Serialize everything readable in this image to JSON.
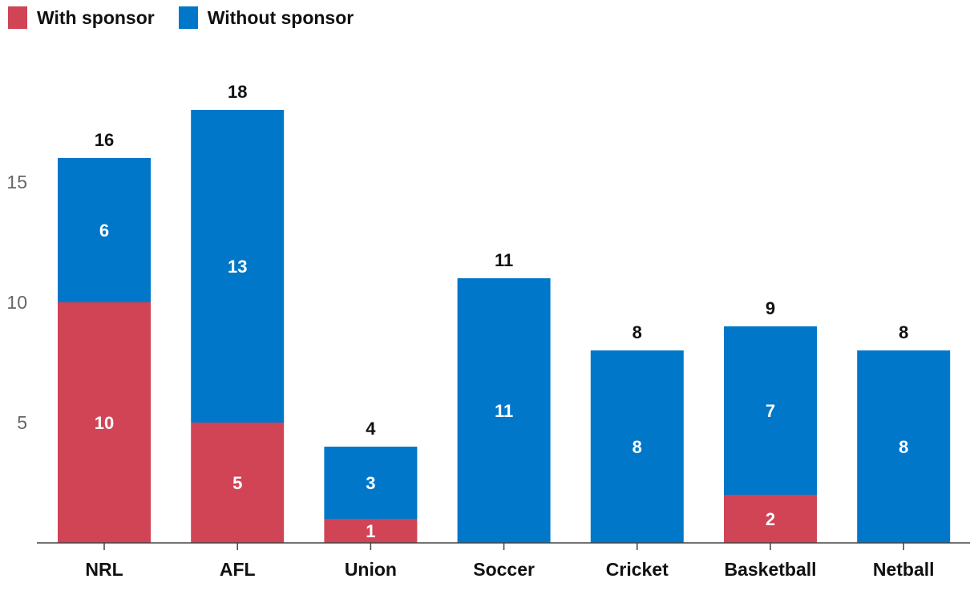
{
  "colors": {
    "with": "#d04455",
    "without": "#0077c8",
    "axis": "#444444"
  },
  "chart_data": {
    "type": "bar",
    "stacked": true,
    "categories": [
      "NRL",
      "AFL",
      "Union",
      "Soccer",
      "Cricket",
      "Basketball",
      "Netball"
    ],
    "series": [
      {
        "name": "With sponsor",
        "values": [
          10,
          5,
          1,
          0,
          0,
          2,
          0
        ]
      },
      {
        "name": "Without sponsor",
        "values": [
          6,
          13,
          3,
          11,
          8,
          7,
          8
        ]
      }
    ],
    "totals": [
      16,
      18,
      4,
      11,
      8,
      9,
      8
    ],
    "yticks": [
      5,
      10,
      15
    ],
    "ylim": [
      0,
      18
    ],
    "grid": false,
    "legend": "top-left"
  }
}
